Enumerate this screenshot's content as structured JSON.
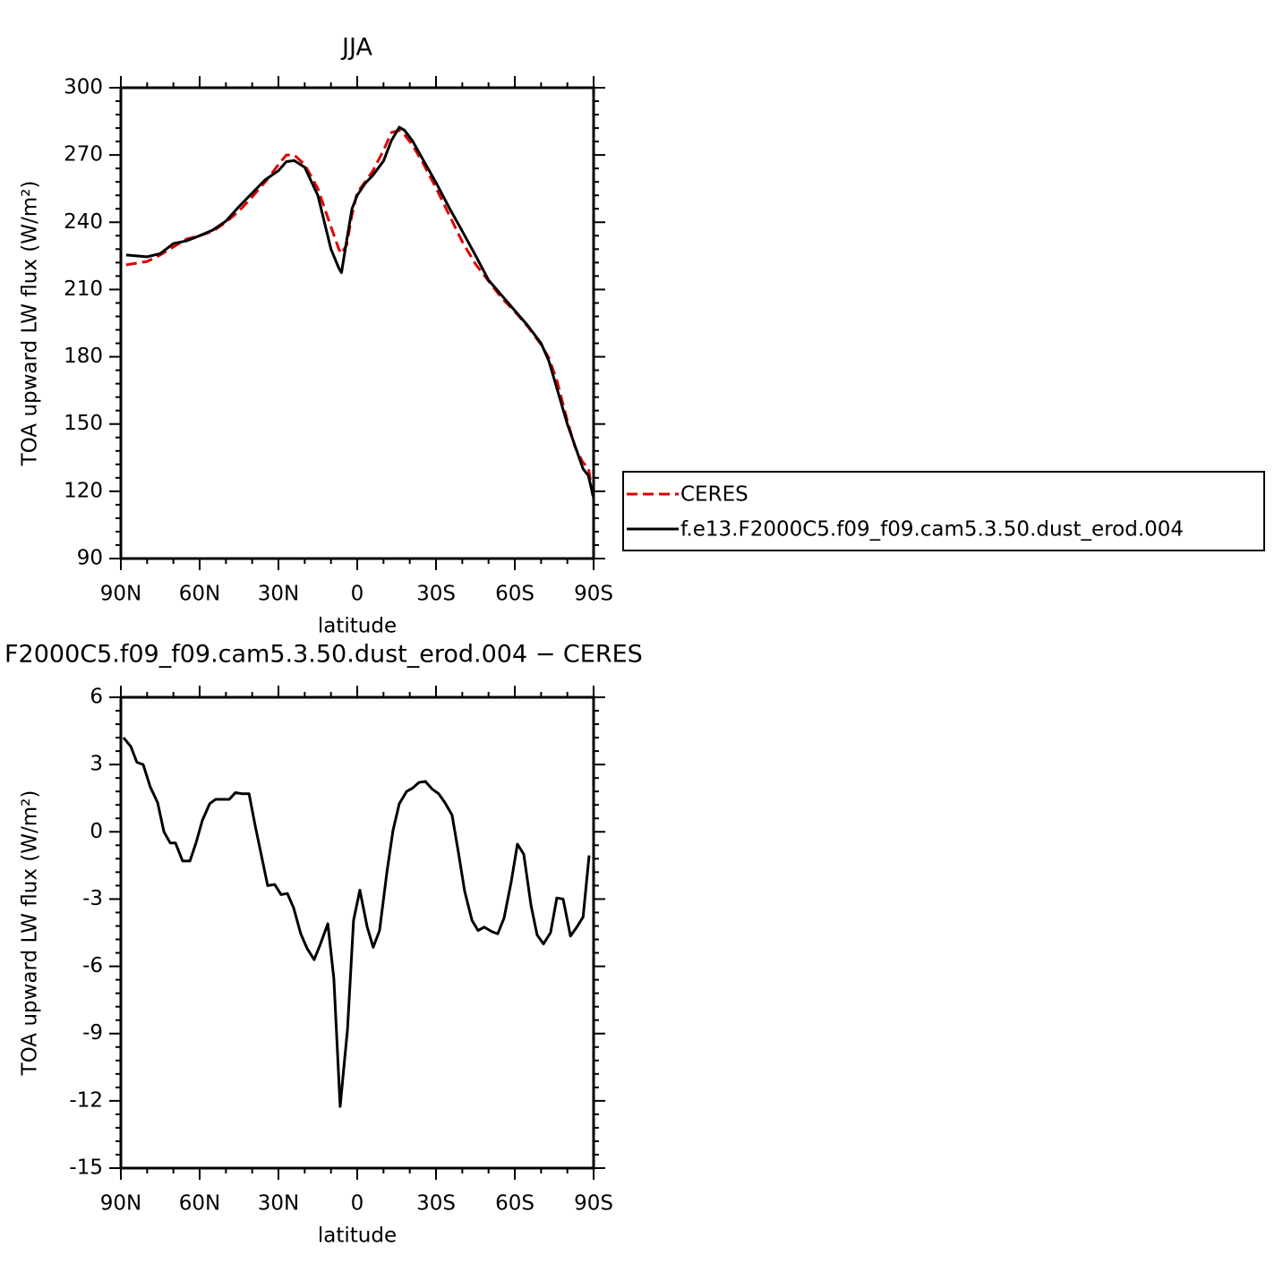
{
  "chart_data": [
    {
      "type": "line",
      "title": "JJA",
      "xlabel": "latitude",
      "ylabel": "TOA upward LW flux (W/m²)",
      "x": [
        88,
        80,
        75,
        70,
        65,
        60,
        55,
        50,
        45,
        40,
        35,
        30,
        27,
        24,
        20,
        15,
        10,
        7,
        6,
        4,
        2,
        0,
        -3,
        -6,
        -10,
        -13,
        -16,
        -18,
        -21,
        -25,
        -30,
        -35,
        -40,
        -45,
        -50,
        -55,
        -60,
        -65,
        -70,
        -73,
        -76,
        -80,
        -83,
        -86,
        -88,
        -90
      ],
      "series": [
        {
          "name": "CERES",
          "color": "#e00000",
          "dashed": true,
          "values": [
            221,
            222.5,
            225.4,
            229,
            232.5,
            234,
            236,
            240,
            245,
            251.3,
            258,
            265.7,
            270,
            270,
            265.7,
            255,
            238,
            228,
            226,
            230,
            243.3,
            253.3,
            258,
            263,
            272,
            280,
            281,
            279,
            274.5,
            266.5,
            255.3,
            243.3,
            231.3,
            221.4,
            213.8,
            206.2,
            200.2,
            193.4,
            185.4,
            179.4,
            169.5,
            151.5,
            139.5,
            132.7,
            130.7,
            115.6
          ]
        },
        {
          "name": "f.e13.F2000C5.f09_f09.cam5.3.50.dust_erod.004",
          "color": "#000000",
          "dashed": false,
          "values": [
            225.4,
            224.6,
            226,
            230.5,
            231.7,
            234,
            236.5,
            240.5,
            247,
            253,
            259,
            263,
            267,
            267.5,
            264.5,
            252,
            228,
            219.5,
            217.5,
            232,
            246,
            252,
            257.3,
            261,
            267.3,
            276.4,
            282.4,
            281,
            276.4,
            268,
            257.7,
            246.5,
            236,
            225.3,
            214.2,
            207.4,
            200.6,
            193.8,
            186,
            178,
            166,
            150,
            140,
            130,
            127,
            117
          ]
        }
      ],
      "xlim": [
        90,
        -90
      ],
      "xticks": [
        {
          "value": 90,
          "label": "90N"
        },
        {
          "value": 60,
          "label": "60N"
        },
        {
          "value": 30,
          "label": "30N"
        },
        0,
        {
          "value": -30,
          "label": "30S"
        },
        {
          "value": -60,
          "label": "60S"
        },
        {
          "value": -90,
          "label": "90S"
        }
      ],
      "ylim": [
        90,
        300
      ],
      "yticks": [
        90,
        120,
        150,
        180,
        210,
        240,
        270,
        300
      ],
      "legend": "right"
    },
    {
      "type": "line",
      "title": "F2000C5.f09_f09.cam5.3.50.dust_erod.004 − CERES",
      "xlabel": "latitude",
      "ylabel": "TOA upward LW flux (W/m²)",
      "x": [
        89,
        86.2,
        83.9,
        81.5,
        78.8,
        76,
        73.6,
        71.2,
        69.2,
        66.5,
        63.7,
        61.4,
        59,
        56.2,
        53.9,
        51.5,
        48.7,
        46.4,
        44,
        41.2,
        38.9,
        36.5,
        34.1,
        31.4,
        29,
        26.6,
        24.2,
        21.5,
        19.1,
        16.4,
        14,
        11.2,
        8.9,
        6.5,
        3.7,
        1.4,
        -1,
        -3.8,
        -6.1,
        -8.5,
        -11.3,
        -13.6,
        -16,
        -18.8,
        -21.1,
        -23.5,
        -25.9,
        -28.6,
        -31,
        -33.4,
        -36.1,
        -38.5,
        -40.9,
        -43.7,
        -46,
        -48.4,
        -51.2,
        -53.5,
        -55.9,
        -58.6,
        -61,
        -63.4,
        -66.2,
        -68.5,
        -70.9,
        -73.6,
        -76,
        -78.4,
        -81.2,
        -83.6,
        -86,
        -88.3
      ],
      "series": [
        {
          "color": "#000000",
          "dashed": false,
          "values": [
            4.2,
            3.8,
            3.1,
            3.0,
            2.0,
            1.3,
            0,
            -0.5,
            -0.5,
            -1.3,
            -1.3,
            -0.5,
            0.5,
            1.25,
            1.45,
            1.45,
            1.45,
            1.75,
            1.7,
            1.7,
            0.3,
            -1.05,
            -2.4,
            -2.35,
            -2.8,
            -2.75,
            -3.4,
            -4.55,
            -5.2,
            -5.7,
            -5.0,
            -4.1,
            -6.55,
            -12.25,
            -8.8,
            -3.95,
            -2.6,
            -4.25,
            -5.15,
            -4.4,
            -1.8,
            0.05,
            1.25,
            1.8,
            1.95,
            2.2,
            2.25,
            1.9,
            1.7,
            1.3,
            0.75,
            -0.9,
            -2.65,
            -3.95,
            -4.4,
            -4.25,
            -4.45,
            -4.55,
            -3.85,
            -2.25,
            -0.55,
            -1.0,
            -3.3,
            -4.6,
            -5.0,
            -4.5,
            -2.95,
            -3.0,
            -4.65,
            -4.25,
            -3.8,
            -1.05
          ]
        }
      ],
      "xlim": [
        90,
        -90
      ],
      "xticks": [
        {
          "value": 90,
          "label": "90N"
        },
        {
          "value": 60,
          "label": "60N"
        },
        {
          "value": 30,
          "label": "30N"
        },
        0,
        {
          "value": -30,
          "label": "30S"
        },
        {
          "value": -60,
          "label": "60S"
        },
        {
          "value": -90,
          "label": "90S"
        }
      ],
      "ylim": [
        -15,
        6
      ],
      "yticks": [
        -15,
        -12,
        -9,
        -6,
        -3,
        0,
        3,
        6
      ]
    }
  ]
}
